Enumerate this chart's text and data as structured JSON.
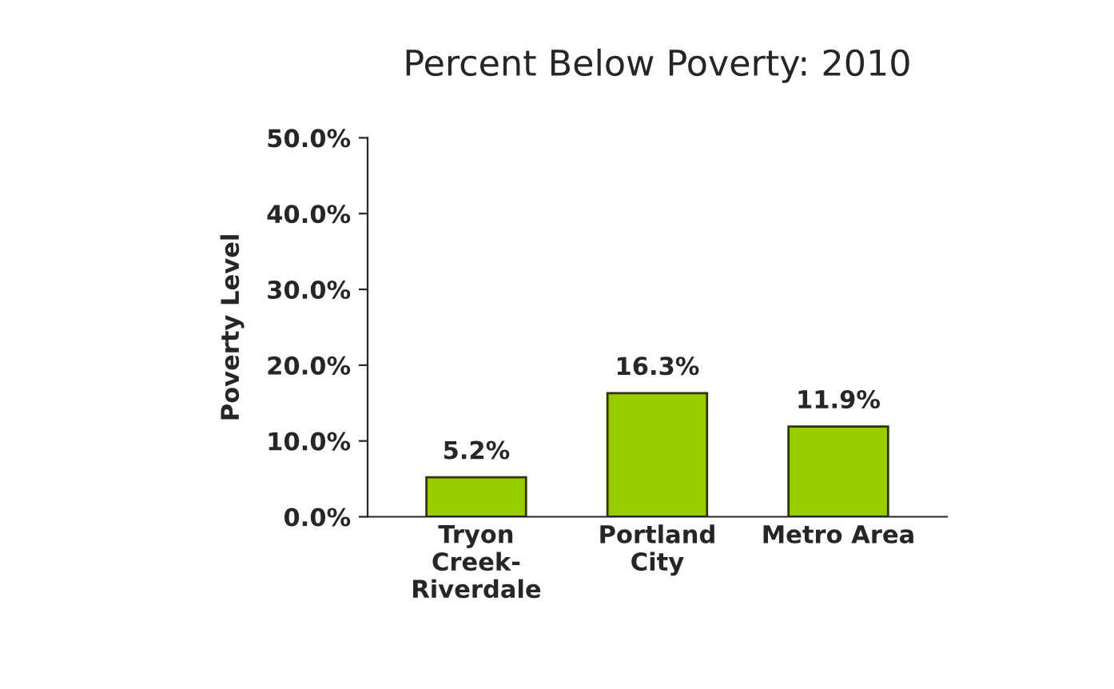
{
  "chart_data": {
    "type": "bar",
    "title": "Percent Below Poverty: 2010",
    "ylabel": "Poverty Level",
    "categories": [
      "Tryon\nCreek-\nRiverdale",
      "Portland\nCity",
      "Metro Area"
    ],
    "values": [
      5.2,
      16.3,
      11.9
    ],
    "color": "#99cc00",
    "value_labels": [
      "5.2%",
      "16.3%",
      "11.9%"
    ],
    "ylim": [
      0,
      50
    ],
    "yticks": [
      {
        "value": 0,
        "label": "0.0%"
      },
      {
        "value": 10,
        "label": "10.0%"
      },
      {
        "value": 20,
        "label": "20.0%"
      },
      {
        "value": 30,
        "label": "30.0%"
      },
      {
        "value": 40,
        "label": "40.0%"
      },
      {
        "value": 50,
        "label": "50.0%"
      }
    ],
    "grid": false,
    "legend": false
  }
}
